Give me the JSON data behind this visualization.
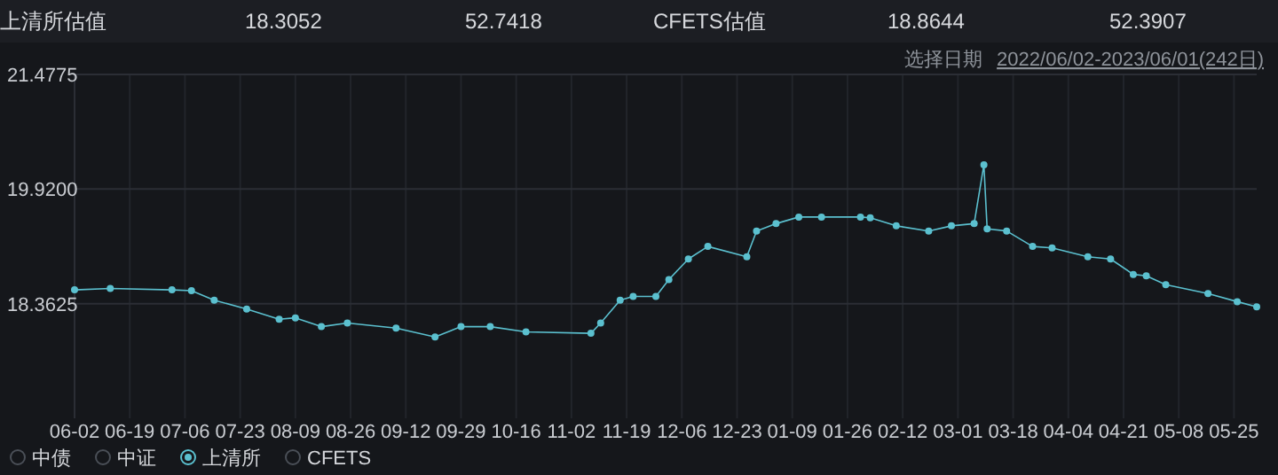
{
  "chart_data": {
    "type": "line",
    "annotations": [
      "上清所估值",
      "18.3052",
      "52.7418",
      "CFETS估值",
      "18.8644",
      "52.3907",
      "选择日期",
      "2022/06/02-2023/06/01(242日)"
    ],
    "x": [
      "2022-06-02",
      "2022-06-13",
      "2022-07-02",
      "2022-07-08",
      "2022-07-15",
      "2022-07-25",
      "2022-08-04",
      "2022-08-09",
      "2022-08-17",
      "2022-08-25",
      "2022-09-09",
      "2022-09-21",
      "2022-09-29",
      "2022-10-08",
      "2022-10-19",
      "2022-11-08",
      "2022-11-11",
      "2022-11-17",
      "2022-11-21",
      "2022-11-28",
      "2022-12-02",
      "2022-12-08",
      "2022-12-14",
      "2022-12-26",
      "2022-12-29",
      "2023-01-04",
      "2023-01-11",
      "2023-01-18",
      "2023-01-30",
      "2023-02-02",
      "2023-02-10",
      "2023-02-20",
      "2023-02-27",
      "2023-03-06",
      "2023-03-09",
      "2023-03-10",
      "2023-03-16",
      "2023-03-24",
      "2023-03-30",
      "2023-04-10",
      "2023-04-17",
      "2023-04-24",
      "2023-04-28",
      "2023-05-04",
      "2023-05-17",
      "2023-05-26",
      "2023-06-01"
    ],
    "series": [
      {
        "name": "中债",
        "color": "#4a4f57",
        "values": [
          null,
          null,
          null,
          null,
          null,
          null,
          null,
          null,
          null,
          null,
          null,
          null,
          null,
          null,
          null,
          null,
          null,
          null,
          null,
          null,
          null,
          null,
          null,
          null,
          null,
          null,
          null,
          null,
          null,
          null,
          null,
          null,
          null,
          null,
          null,
          null,
          null,
          null,
          null,
          null,
          null,
          null,
          null,
          null,
          null,
          null,
          null
        ]
      },
      {
        "name": "中证",
        "color": "#4a4f57",
        "values": [
          null,
          null,
          null,
          null,
          null,
          null,
          null,
          null,
          null,
          null,
          null,
          null,
          null,
          null,
          null,
          null,
          null,
          null,
          null,
          null,
          null,
          null,
          null,
          null,
          null,
          null,
          null,
          null,
          null,
          null,
          null,
          null,
          null,
          null,
          null,
          null,
          null,
          null,
          null,
          null,
          null,
          null,
          null,
          null,
          null,
          null,
          null
        ]
      },
      {
        "name": "上清所",
        "color": "#5bc0cf",
        "values": [
          18.55,
          18.57,
          18.55,
          18.54,
          18.41,
          18.29,
          18.15,
          18.17,
          18.05,
          18.1,
          18.03,
          17.91,
          18.05,
          18.05,
          17.98,
          17.96,
          18.1,
          18.41,
          18.46,
          18.46,
          18.69,
          18.97,
          19.14,
          19.0,
          19.35,
          19.45,
          19.54,
          19.54,
          19.54,
          19.53,
          19.42,
          19.35,
          19.42,
          19.45,
          20.25,
          19.38,
          19.35,
          19.14,
          19.12,
          19.0,
          18.97,
          18.76,
          18.74,
          18.62,
          18.5,
          18.39,
          18.32
        ]
      },
      {
        "name": "CFETS",
        "color": "#4a4f57",
        "values": [
          null,
          null,
          null,
          null,
          null,
          null,
          null,
          null,
          null,
          null,
          null,
          null,
          null,
          null,
          null,
          null,
          null,
          null,
          null,
          null,
          null,
          null,
          null,
          null,
          null,
          null,
          null,
          null,
          null,
          null,
          null,
          null,
          null,
          null,
          null,
          null,
          null,
          null,
          null,
          null,
          null,
          null,
          null,
          null,
          null,
          null,
          null
        ]
      }
    ],
    "xlim": [
      "2022-06-02",
      "2023-06-01"
    ],
    "xticks": [
      {
        "value": "2022-06-02",
        "label": "06-02"
      },
      {
        "value": "2022-06-19",
        "label": "06-19"
      },
      {
        "value": "2022-07-06",
        "label": "07-06"
      },
      {
        "value": "2022-07-23",
        "label": "07-23"
      },
      {
        "value": "2022-08-09",
        "label": "08-09"
      },
      {
        "value": "2022-08-26",
        "label": "08-26"
      },
      {
        "value": "2022-09-12",
        "label": "09-12"
      },
      {
        "value": "2022-09-29",
        "label": "09-29"
      },
      {
        "value": "2022-10-16",
        "label": "10-16"
      },
      {
        "value": "2022-11-02",
        "label": "11-02"
      },
      {
        "value": "2022-11-19",
        "label": "11-19"
      },
      {
        "value": "2022-12-06",
        "label": "12-06"
      },
      {
        "value": "2022-12-23",
        "label": "12-23"
      },
      {
        "value": "2023-01-09",
        "label": "01-09"
      },
      {
        "value": "2023-01-26",
        "label": "01-26"
      },
      {
        "value": "2023-02-12",
        "label": "02-12"
      },
      {
        "value": "2023-03-01",
        "label": "03-01"
      },
      {
        "value": "2023-03-18",
        "label": "03-18"
      },
      {
        "value": "2023-04-04",
        "label": "04-04"
      },
      {
        "value": "2023-04-21",
        "label": "04-21"
      },
      {
        "value": "2023-05-08",
        "label": "05-08"
      },
      {
        "value": "2023-05-25",
        "label": "05-25"
      }
    ],
    "ylim": [
      16.805,
      21.4775
    ],
    "yticks": [
      {
        "value": 18.3625,
        "label": "18.3625"
      },
      {
        "value": 19.92,
        "label": "19.9200"
      },
      {
        "value": 21.4775,
        "label": "21.4775"
      }
    ],
    "grid": true,
    "legend": "bottom left",
    "marker": "circle",
    "line_style": "solid"
  }
}
